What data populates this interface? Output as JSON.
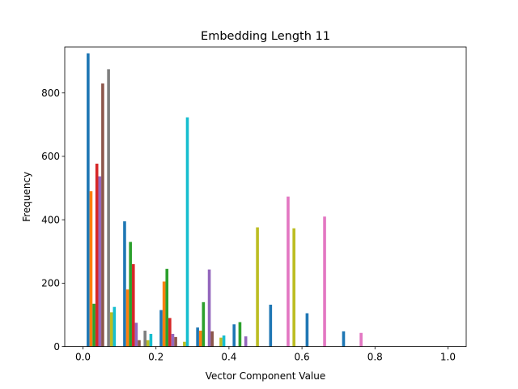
{
  "chart_data": {
    "type": "bar",
    "title": "Embedding Length 11",
    "xlabel": "Vector Component Value",
    "ylabel": "Frequency",
    "xlim": [
      -0.05,
      1.05
    ],
    "ylim": [
      0,
      945
    ],
    "x_ticks": [
      0.0,
      0.2,
      0.4,
      0.6,
      0.8,
      1.0
    ],
    "x_tick_labels": [
      "0.0",
      "0.2",
      "0.4",
      "0.6",
      "0.8",
      "1.0"
    ],
    "y_ticks": [
      0,
      200,
      400,
      600,
      800
    ],
    "y_tick_labels": [
      "0",
      "200",
      "400",
      "600",
      "800"
    ],
    "grid": false,
    "bin_edges": [
      0.0,
      0.1,
      0.2,
      0.3,
      0.4,
      0.5,
      0.6,
      0.7,
      0.8,
      0.9,
      1.0
    ],
    "series": [
      {
        "color": "#1f77b4",
        "values": [
          925,
          395,
          115,
          60,
          70,
          132,
          105,
          48,
          0,
          0
        ]
      },
      {
        "color": "#ff7f0e",
        "values": [
          490,
          180,
          205,
          50,
          0,
          0,
          0,
          0,
          0,
          0
        ]
      },
      {
        "color": "#2ca02c",
        "values": [
          135,
          330,
          245,
          140,
          77,
          0,
          0,
          0,
          0,
          0
        ]
      },
      {
        "color": "#d62728",
        "values": [
          577,
          260,
          90,
          0,
          0,
          0,
          0,
          0,
          0,
          0
        ]
      },
      {
        "color": "#9467bd",
        "values": [
          537,
          75,
          40,
          243,
          32,
          0,
          0,
          0,
          0,
          0
        ]
      },
      {
        "color": "#8c564b",
        "values": [
          830,
          20,
          30,
          48,
          0,
          0,
          0,
          0,
          0,
          0
        ]
      },
      {
        "color": "#e377c2",
        "values": [
          0,
          0,
          0,
          0,
          0,
          473,
          410,
          43,
          0,
          0
        ]
      },
      {
        "color": "#7f7f7f",
        "values": [
          875,
          50,
          0,
          0,
          0,
          0,
          0,
          0,
          0,
          0
        ]
      },
      {
        "color": "#bcbd22",
        "values": [
          108,
          20,
          15,
          28,
          376,
          373,
          0,
          0,
          0,
          0
        ]
      },
      {
        "color": "#17becf",
        "values": [
          125,
          40,
          723,
          35,
          0,
          0,
          0,
          0,
          0,
          0
        ]
      }
    ]
  }
}
